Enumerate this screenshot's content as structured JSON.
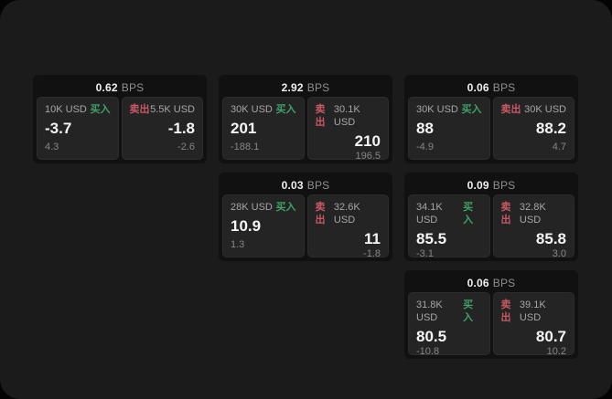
{
  "colors": {
    "buy_green": "#3fa068",
    "sell_red": "#ca5864",
    "window_bg": "#1b1b1c",
    "card_bg": "#111112",
    "panel_bg": "#242425"
  },
  "cards": [
    {
      "col": 1,
      "row": 1,
      "bps": "0.62",
      "bps_unit": "BPS",
      "buy": {
        "amount": "10K USD",
        "side": "买入",
        "value": "-3.7",
        "sub": "4.3"
      },
      "sell": {
        "amount": "5.5K USD",
        "side": "卖出",
        "value": "-1.8",
        "sub": "-2.6"
      }
    },
    {
      "col": 2,
      "row": 1,
      "bps": "2.92",
      "bps_unit": "BPS",
      "buy": {
        "amount": "30K USD",
        "side": "买入",
        "value": "201",
        "sub": "-188.1"
      },
      "sell": {
        "amount": "30.1K USD",
        "side": "卖出",
        "value": "210",
        "sub": "196.5"
      }
    },
    {
      "col": 3,
      "row": 1,
      "bps": "0.06",
      "bps_unit": "BPS",
      "buy": {
        "amount": "30K USD",
        "side": "买入",
        "value": "88",
        "sub": "-4.9"
      },
      "sell": {
        "amount": "30K USD",
        "side": "卖出",
        "value": "88.2",
        "sub": "4.7"
      }
    },
    {
      "col": 2,
      "row": 2,
      "bps": "0.03",
      "bps_unit": "BPS",
      "buy": {
        "amount": "28K USD",
        "side": "买入",
        "value": "10.9",
        "sub": "1.3"
      },
      "sell": {
        "amount": "32.6K USD",
        "side": "卖出",
        "value": "11",
        "sub": "-1.8"
      }
    },
    {
      "col": 3,
      "row": 2,
      "bps": "0.09",
      "bps_unit": "BPS",
      "buy": {
        "amount": "34.1K USD",
        "side": "买入",
        "value": "85.5",
        "sub": "-3.1"
      },
      "sell": {
        "amount": "32.8K USD",
        "side": "卖出",
        "value": "85.8",
        "sub": "3.0"
      }
    },
    {
      "col": 3,
      "row": 3,
      "bps": "0.06",
      "bps_unit": "BPS",
      "buy": {
        "amount": "31.8K USD",
        "side": "买入",
        "value": "80.5",
        "sub": "-10.8"
      },
      "sell": {
        "amount": "39.1K USD",
        "side": "卖出",
        "value": "80.7",
        "sub": "10.2"
      }
    }
  ]
}
